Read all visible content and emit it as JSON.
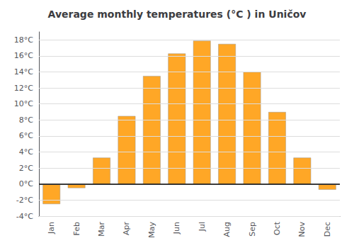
{
  "chart_data": {
    "type": "bar",
    "title": "Average monthly temperatures (°C ) in Uničov",
    "categories": [
      "Jan",
      "Feb",
      "Mar",
      "Apr",
      "May",
      "Jun",
      "Jul",
      "Aug",
      "Sep",
      "Oct",
      "Nov",
      "Dec"
    ],
    "values": [
      -2.5,
      -0.5,
      3.3,
      8.5,
      13.5,
      16.3,
      17.9,
      17.5,
      14.0,
      9.0,
      3.3,
      -0.7
    ],
    "color": "#FFA726",
    "ylim": [
      -4,
      19
    ],
    "yticks": [
      {
        "value": -4,
        "label": "-4°C"
      },
      {
        "value": -2,
        "label": "-2°C"
      },
      {
        "value": 0,
        "label": "0°C"
      },
      {
        "value": 2,
        "label": "2°C"
      },
      {
        "value": 4,
        "label": "4°C"
      },
      {
        "value": 6,
        "label": "6°C"
      },
      {
        "value": 8,
        "label": "8°C"
      },
      {
        "value": 10,
        "label": "10°C"
      },
      {
        "value": 12,
        "label": "12°C"
      },
      {
        "value": 14,
        "label": "14°C"
      },
      {
        "value": 16,
        "label": "16°C"
      },
      {
        "value": 18,
        "label": "18°C"
      }
    ],
    "grid": true
  }
}
